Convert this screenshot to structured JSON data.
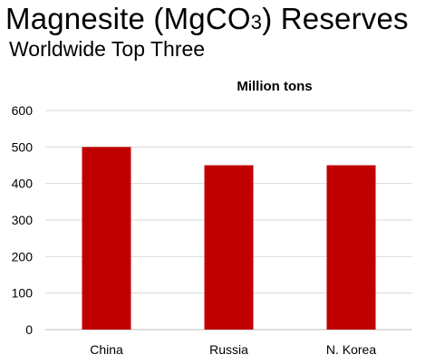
{
  "header": {
    "title_prefix": "Magnesite (MgCO",
    "title_subscript": "3",
    "title_suffix": ") Reserves",
    "subtitle": "Worldwide Top Three"
  },
  "chart_data": {
    "type": "bar",
    "title": "Million tons",
    "categories": [
      "China",
      "Russia",
      "N. Korea"
    ],
    "values": [
      500,
      450,
      450
    ],
    "xlabel": "",
    "ylabel": "",
    "ylim": [
      0,
      600
    ],
    "yticks": [
      0,
      100,
      200,
      300,
      400,
      500,
      600
    ],
    "grid": true,
    "legend": "none",
    "colors": {
      "bar": "#C00000",
      "grid": "#D9D9D9",
      "axis": "#BFBFBF",
      "text": "#000000"
    }
  }
}
